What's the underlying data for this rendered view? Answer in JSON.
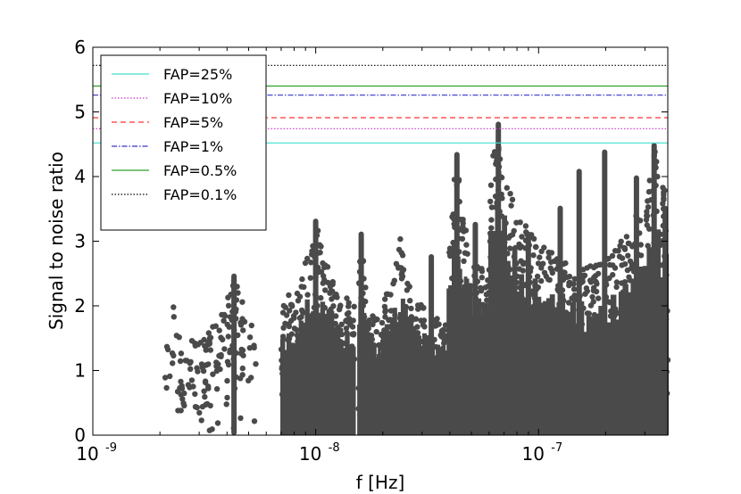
{
  "chart_data": {
    "type": "scatter",
    "title": "",
    "xlabel": "f [Hz]",
    "ylabel": "Signal to noise ratio",
    "xscale": "log",
    "xlim": [
      1e-09,
      3.8e-07
    ],
    "ylim": [
      0,
      6
    ],
    "x_ticks": [
      {
        "value": 1e-09,
        "base": "10",
        "exp": "-9"
      },
      {
        "value": 1e-08,
        "base": "10",
        "exp": "-8"
      },
      {
        "value": 1e-07,
        "base": "10",
        "exp": "-7"
      }
    ],
    "y_ticks": [
      {
        "value": 0,
        "label": "0"
      },
      {
        "value": 1,
        "label": "1"
      },
      {
        "value": 2,
        "label": "2"
      },
      {
        "value": 3,
        "label": "3"
      },
      {
        "value": 4,
        "label": "4"
      },
      {
        "value": 5,
        "label": "5"
      },
      {
        "value": 6,
        "label": "6"
      }
    ],
    "grid": false,
    "legend_position": "top-left",
    "point_color": "#4a4a4a",
    "thresholds": [
      {
        "name": "FAP=25%",
        "value": 4.52,
        "color": "#40e0d0",
        "dash": ""
      },
      {
        "name": "FAP=10%",
        "value": 4.74,
        "color": "#cc33cc",
        "dash": "1.5,2"
      },
      {
        "name": "FAP=5%",
        "value": 4.91,
        "color": "#ff3333",
        "dash": "6,4"
      },
      {
        "name": "FAP=1%",
        "value": 5.26,
        "color": "#3333cc",
        "dash": "6,2,1.5,2"
      },
      {
        "name": "FAP=0.5%",
        "value": 5.4,
        "color": "#2ca02c",
        "dash": ""
      },
      {
        "name": "FAP=0.1%",
        "value": 5.72,
        "color": "#000000",
        "dash": "1.5,2"
      }
    ],
    "series": [
      {
        "clusters": [
          {
            "x": [
              2.05e-09,
              2.7e-09
            ],
            "peak": 2.05,
            "peak_x": 2.3e-09,
            "density": 0.35
          },
          {
            "x": [
              2.7e-09,
              5.4e-09
            ],
            "peak": 2.5,
            "peak_x": 4.3e-09,
            "density": 0.6
          },
          {
            "x": [
              7e-09,
              1.5e-08
            ],
            "peak": 3.35,
            "peak_x": 1e-08,
            "density": 1.0
          },
          {
            "x": [
              1.55e-08,
              2e-08
            ],
            "peak": 3.15,
            "peak_x": 1.6e-08,
            "density": 1.0
          },
          {
            "x": [
              2e-08,
              3.9e-08
            ],
            "peak": 3.05,
            "peak_x": 2.4e-08,
            "density": 1.0
          },
          {
            "x": [
              3.9e-08,
              6e-08
            ],
            "peak": 4.38,
            "peak_x": 4.3e-08,
            "density": 1.0
          },
          {
            "x": [
              6e-08,
              1.4e-07
            ],
            "peak": 4.85,
            "peak_x": 6.6e-08,
            "density": 1.0
          },
          {
            "x": [
              1.4e-07,
              3.8e-07
            ],
            "peak": 4.52,
            "peak_x": 3.3e-07,
            "density": 1.0
          }
        ],
        "spikes": [
          {
            "x": 4.3e-08,
            "y": 4.38
          },
          {
            "x": 6.6e-08,
            "y": 4.85
          },
          {
            "x": 1.52e-07,
            "y": 4.12
          },
          {
            "x": 1.98e-07,
            "y": 4.42
          },
          {
            "x": 3.3e-07,
            "y": 4.52
          },
          {
            "x": 2.75e-07,
            "y": 4.02
          },
          {
            "x": 3.7e-07,
            "y": 3.55
          },
          {
            "x": 1.25e-07,
            "y": 3.55
          },
          {
            "x": 5.2e-08,
            "y": 3.3
          },
          {
            "x": 9e-08,
            "y": 3.15
          },
          {
            "x": 3.3e-08,
            "y": 2.8
          },
          {
            "x": 1.6e-08,
            "y": 3.15
          },
          {
            "x": 1e-08,
            "y": 3.35
          },
          {
            "x": 4.3e-09,
            "y": 2.5
          }
        ]
      }
    ]
  }
}
